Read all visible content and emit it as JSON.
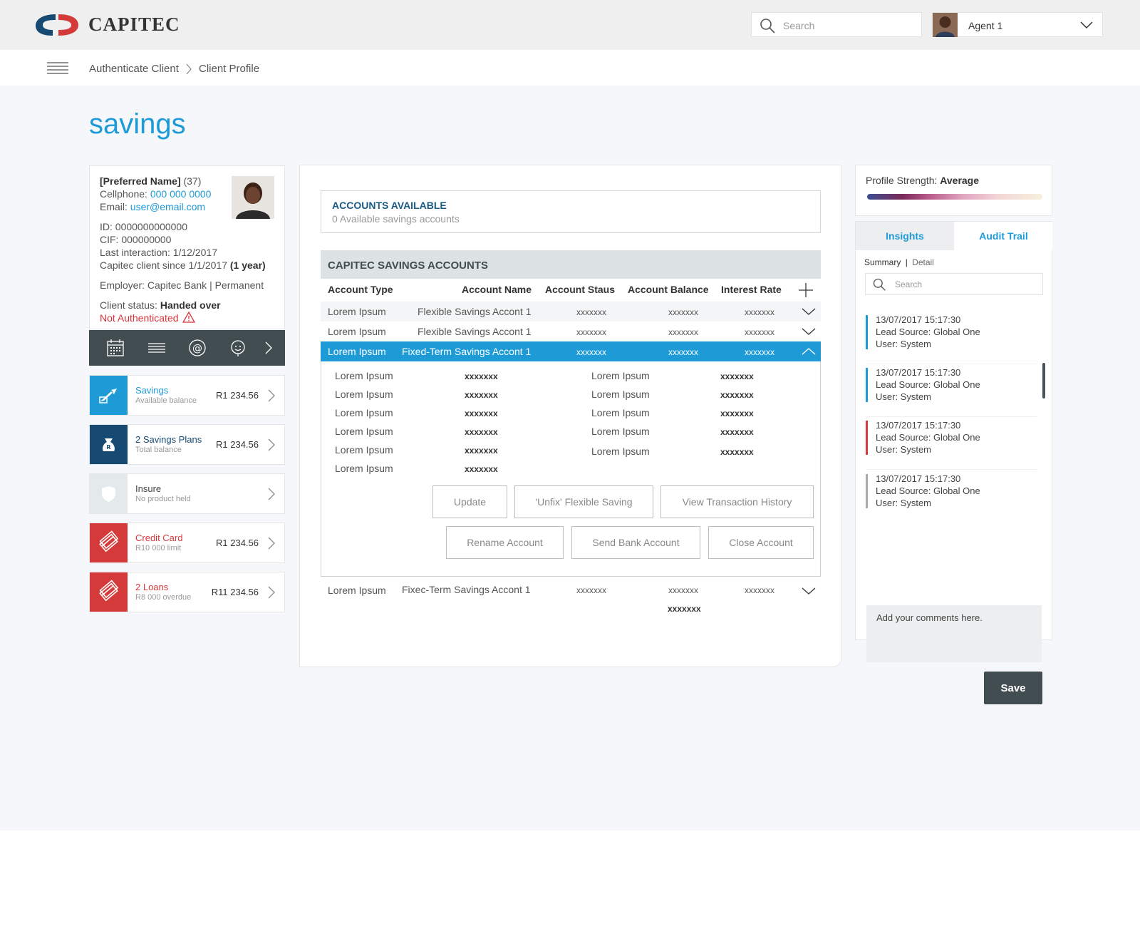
{
  "header": {
    "logo_text": "CAPITEC",
    "search_placeholder": "Search",
    "agent_name": "Agent 1"
  },
  "breadcrumb": [
    "Authenticate Client",
    "Client Profile"
  ],
  "page_title": "savings",
  "client": {
    "name": "[Preferred Name]",
    "age": "(37)",
    "cellphone_label": "Cellphone:",
    "cellphone": "000 000 0000",
    "email_label": "Email:",
    "email": "user@email.com",
    "id": "ID: 0000000000000",
    "cif": "CIF: 000000000",
    "last_interaction": "Last interaction: 1/12/2017",
    "since": "Capitec client since 1/1/2017",
    "since_years": "(1 year)",
    "employer": "Employer: Capitec Bank | Permanent",
    "status_label": "Client status:",
    "status": "Handed over",
    "auth": "Not Authenticated"
  },
  "products": [
    {
      "title": "Savings",
      "sub": "Available balance",
      "amount": "R1 234.56",
      "color": "#1e9bd7",
      "title_color": "#1e9bd7",
      "icon": "savings-icon"
    },
    {
      "title": "2 Savings Plans",
      "sub": "Total balance",
      "amount": "R1 234.56",
      "color": "#164a72",
      "title_color": "#164a72",
      "icon": "money-bag-icon"
    },
    {
      "title": "Insure",
      "sub": "No product held",
      "amount": "",
      "color": "#e4e9ec",
      "title_color": "#444444",
      "icon": "shield-icon"
    },
    {
      "title": "Credit Card",
      "sub": "R10 000 limit",
      "amount": "R1 234.56",
      "color": "#d53a3a",
      "title_color": "#d53a3a",
      "icon": "credit-card-icon"
    },
    {
      "title": "2 Loans",
      "sub": "R8 000 overdue",
      "amount": "R11 234.56",
      "color": "#d53a3a",
      "title_color": "#d53a3a",
      "icon": "loan-icon"
    }
  ],
  "accounts_available": {
    "title": "ACCOUNTS AVAILABLE",
    "subtitle": "0 Available savings accounts"
  },
  "savings_section": {
    "title": "CAPITEC SAVINGS ACCOUNTS",
    "columns": [
      "Account Type",
      "Account Name",
      "Account Staus",
      "Account Balance",
      "Interest Rate"
    ],
    "rows": [
      {
        "type": "Lorem Ipsum",
        "name": "Flexible Savings Accont 1",
        "status": "xxxxxxx",
        "balance": "xxxxxxx",
        "rate": "xxxxxxx"
      },
      {
        "type": "Lorem Ipsum",
        "name": "Flexible Savings Accont 1",
        "status": "xxxxxxx",
        "balance": "xxxxxxx",
        "rate": "xxxxxxx"
      },
      {
        "type": "Lorem Ipsum",
        "name": "Fixed-Term Savings Accont 1",
        "status": "xxxxxxx",
        "balance": "xxxxxxx",
        "rate": "xxxxxxx"
      }
    ],
    "details_left": [
      {
        "label": "Lorem Ipsum",
        "value": "xxxxxxx"
      },
      {
        "label": "Lorem Ipsum",
        "value": "xxxxxxx"
      },
      {
        "label": "Lorem Ipsum",
        "value": "xxxxxxx"
      },
      {
        "label": "Lorem Ipsum",
        "value": "xxxxxxx"
      },
      {
        "label": "Lorem Ipsum",
        "value": "xxxxxxx"
      },
      {
        "label": "Lorem Ipsum",
        "value": "xxxxxxx"
      }
    ],
    "details_right": [
      {
        "label": "Lorem Ipsum",
        "value": "xxxxxxx"
      },
      {
        "label": "Lorem Ipsum",
        "value": "xxxxxxx"
      },
      {
        "label": "Lorem Ipsum",
        "value": "xxxxxxx"
      },
      {
        "label": "Lorem Ipsum",
        "value": "xxxxxxx"
      },
      {
        "label": "Lorem Ipsum",
        "value": "xxxxxxx"
      }
    ],
    "buttons": [
      "Update",
      "'Unfix' Flexible Saving",
      "View Transaction History",
      "Rename Account",
      "Send Bank Account",
      "Close Account"
    ],
    "last_row": {
      "type": "Lorem Ipsum",
      "name": "Fixec-Term Savings Accont 1",
      "status": "xxxxxxx",
      "balance": "xxxxxxx",
      "rate": "xxxxxxx",
      "balance_extra": "xxxxxxx"
    }
  },
  "profile_strength": {
    "label": "Profile Strength:",
    "value": "Average",
    "level": 0.5
  },
  "sidepanel": {
    "tabs": [
      "Insights",
      "Audit Trail"
    ],
    "filter": [
      "Summary",
      "|",
      "Detail"
    ],
    "search_placeholder": "Search",
    "entries": [
      {
        "date": "13/07/2017  15:17:30",
        "source": "Lead Source: Global One",
        "user": "User: System",
        "color": "#1e9bd7"
      },
      {
        "date": "13/07/2017  15:17:30",
        "source": "Lead Source: Global One",
        "user": "User: System",
        "color": "#1e9bd7"
      },
      {
        "date": "13/07/2017  15:17:30",
        "source": "Lead Source: Global One",
        "user": "User: System",
        "color": "#d53a3a"
      },
      {
        "date": "13/07/2017  15:17:30",
        "source": "Lead Source: Global One",
        "user": "User: System",
        "color": "#aaaaaa"
      }
    ],
    "comment_placeholder": "Add your comments here.",
    "save_label": "Save"
  }
}
